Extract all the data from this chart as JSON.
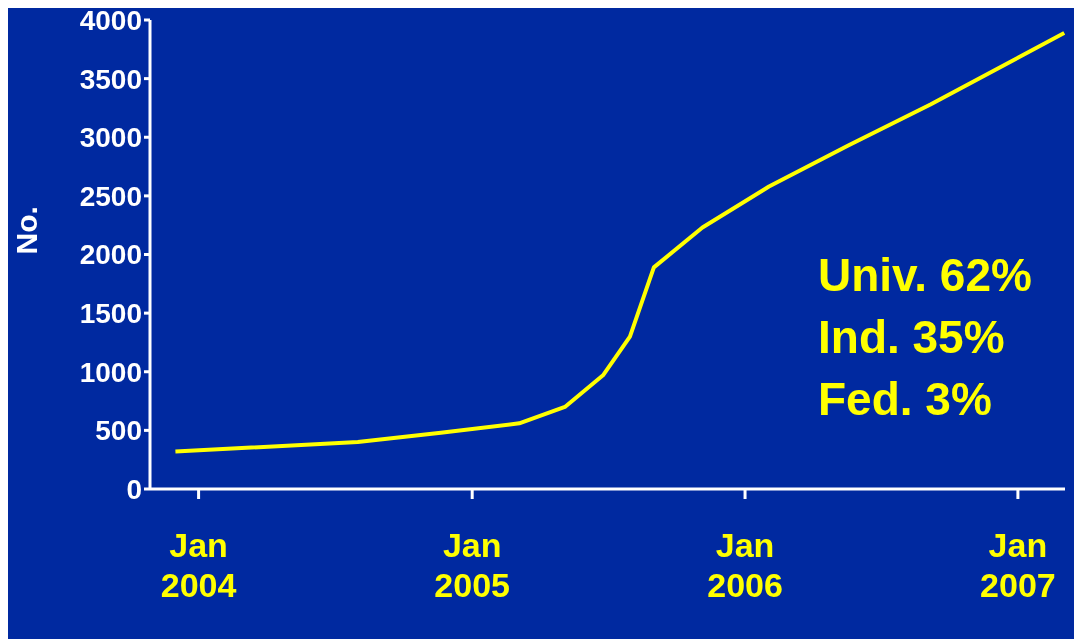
{
  "chart_data": {
    "type": "line",
    "ylabel": "No.",
    "x": [
      "2003-12-01",
      "2004-08-01",
      "2004-11-20",
      "2005-03-05",
      "2005-05-05",
      "2005-06-25",
      "2005-07-31",
      "2005-09-01",
      "2005-11-05",
      "2006-02-02",
      "2006-05-19",
      "2006-09-06",
      "2006-11-07",
      "2007-03-04"
    ],
    "series": [
      {
        "color": "#ffff00",
        "values": [
          320,
          400,
          480,
          560,
          700,
          970,
          1300,
          1890,
          2230,
          2580,
          2930,
          3280,
          3490,
          3890
        ]
      }
    ],
    "xlim": [
      "2003-10-28",
      "2007-03-05"
    ],
    "xticks": [
      {
        "value": "2004-01-01",
        "label": "Jan\n2004"
      },
      {
        "value": "2005-01-01",
        "label": "Jan\n2005"
      },
      {
        "value": "2006-01-01",
        "label": "Jan\n2006"
      },
      {
        "value": "2007-01-01",
        "label": "Jan\n2007"
      }
    ],
    "ylim": [
      0,
      4000
    ],
    "yticks": [
      0,
      500,
      1000,
      1500,
      2000,
      2500,
      3000,
      3500,
      4000
    ],
    "annotations": [
      "Univ. 62%",
      "Ind. 35%",
      "Fed. 3%"
    ],
    "grid": false,
    "legend": false,
    "marker": "none",
    "line_style": "solid"
  }
}
